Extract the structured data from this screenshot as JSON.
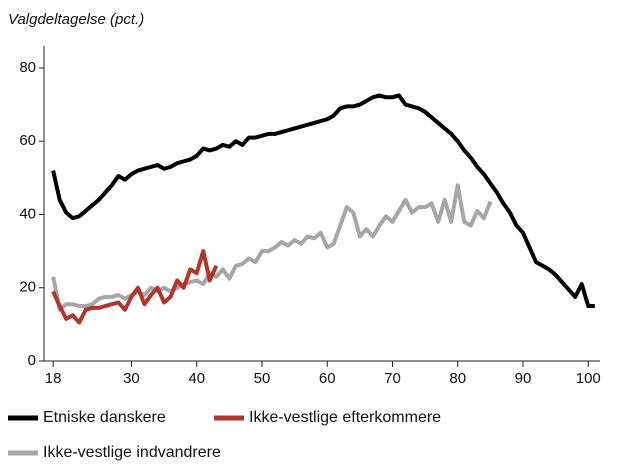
{
  "chart_data": {
    "type": "line",
    "title": "Valgdeltagelse (pct.)",
    "xlim": [
      16.6,
      101.8
    ],
    "ylim": [
      0,
      86
    ],
    "xticks": [
      18,
      30,
      40,
      50,
      60,
      70,
      80,
      90,
      100
    ],
    "yticks": [
      0,
      20,
      40,
      60,
      80
    ],
    "legend": "bottom",
    "series": [
      {
        "name": "Etniske danskere",
        "color": "#000000",
        "x": [
          18,
          19,
          20,
          21,
          22,
          23,
          24,
          25,
          26,
          27,
          28,
          29,
          30,
          31,
          32,
          33,
          34,
          35,
          36,
          37,
          38,
          39,
          40,
          41,
          42,
          43,
          44,
          45,
          46,
          47,
          48,
          49,
          50,
          51,
          52,
          53,
          54,
          55,
          56,
          57,
          58,
          59,
          60,
          61,
          62,
          63,
          64,
          65,
          66,
          67,
          68,
          69,
          70,
          71,
          72,
          73,
          74,
          75,
          76,
          77,
          78,
          79,
          80,
          81,
          82,
          83,
          84,
          85,
          86,
          87,
          88,
          89,
          90,
          91,
          92,
          93,
          94,
          95,
          96,
          97,
          98,
          99,
          100,
          101
        ],
        "values": [
          52,
          44,
          40.5,
          39,
          39.5,
          41,
          42.5,
          44,
          46,
          48,
          50.5,
          49.5,
          51,
          52,
          52.5,
          53,
          53.5,
          52.5,
          53,
          54,
          54.5,
          55,
          56,
          58,
          57.5,
          58,
          59,
          58.5,
          60,
          59,
          61,
          61,
          61.5,
          62,
          62,
          62.5,
          63,
          63.5,
          64,
          64.5,
          65,
          65.5,
          66,
          67,
          69,
          69.5,
          69.5,
          70,
          71,
          72,
          72.5,
          72,
          72,
          72.5,
          70,
          69.5,
          69,
          68,
          66.5,
          65,
          63.5,
          62,
          60,
          57.5,
          55.5,
          53,
          51,
          48.5,
          46,
          43,
          40.5,
          37,
          35,
          31,
          27,
          26,
          25,
          23.5,
          21.5,
          19.5,
          17.5,
          21,
          15,
          15
        ]
      },
      {
        "name": "Ikke-vestlige efterkommere",
        "color": "#b0352b",
        "x": [
          18,
          19,
          20,
          21,
          22,
          23,
          24,
          25,
          26,
          27,
          28,
          29,
          30,
          31,
          32,
          33,
          34,
          35,
          36,
          37,
          38,
          39,
          40,
          41,
          42,
          43
        ],
        "values": [
          19,
          15,
          11.5,
          12.5,
          10.5,
          14,
          14.5,
          14.5,
          15,
          15.5,
          16,
          14,
          17.5,
          20,
          15.5,
          18,
          20,
          16,
          17.5,
          22,
          20,
          25,
          24,
          30,
          22,
          26
        ]
      },
      {
        "name": "Ikke-vestlige indvandrere",
        "color": "#a6a6a6",
        "x": [
          18,
          19,
          20,
          21,
          22,
          23,
          24,
          25,
          26,
          27,
          28,
          29,
          30,
          31,
          32,
          33,
          34,
          35,
          36,
          37,
          38,
          39,
          40,
          41,
          42,
          43,
          44,
          45,
          46,
          47,
          48,
          49,
          50,
          51,
          52,
          53,
          54,
          55,
          56,
          57,
          58,
          59,
          60,
          61,
          62,
          63,
          64,
          65,
          66,
          67,
          68,
          69,
          70,
          71,
          72,
          73,
          74,
          75,
          76,
          77,
          78,
          79,
          80,
          81,
          82,
          83,
          84,
          85
        ],
        "values": [
          23,
          14,
          15.5,
          15.5,
          15,
          15,
          15.5,
          17,
          17.5,
          17.5,
          18,
          17,
          18,
          19,
          18,
          20,
          19,
          20,
          19,
          20,
          21,
          21.5,
          22,
          21,
          24,
          23,
          25,
          22.5,
          26,
          26.5,
          28,
          27,
          30,
          30,
          31,
          32.5,
          31.5,
          33,
          32,
          34,
          33.5,
          35,
          31,
          32,
          37,
          42,
          40.5,
          34,
          36,
          34,
          37,
          39.5,
          38,
          41,
          44,
          40.5,
          42,
          42,
          43,
          38,
          44,
          38,
          48,
          38,
          37,
          41,
          39,
          43.5
        ]
      }
    ]
  }
}
